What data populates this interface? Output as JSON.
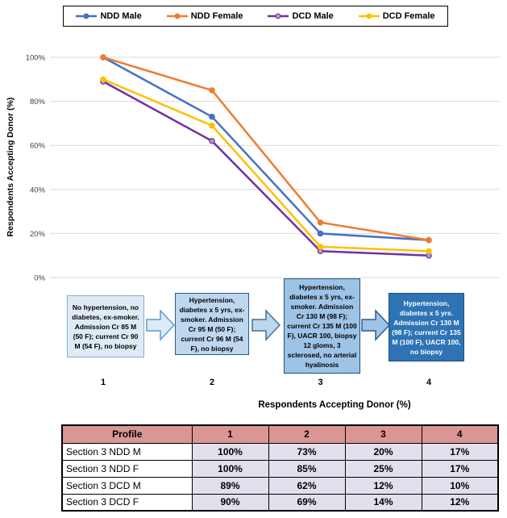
{
  "chart_data": {
    "type": "line",
    "x": [
      1,
      2,
      3,
      4
    ],
    "series": [
      {
        "name": "NDD Male",
        "color": "#4472C4",
        "marker_fill": "#4472C4",
        "values": [
          100,
          73,
          20,
          17
        ]
      },
      {
        "name": "DCD Male",
        "color": "#7030A0",
        "marker_fill": "#A6A0B8",
        "values": [
          89,
          62,
          12,
          10
        ]
      },
      {
        "name": "DCD Female",
        "color": "#FFC000",
        "marker_fill": "#FFC000",
        "values": [
          90,
          69,
          14,
          12
        ]
      },
      {
        "name": "NDD Female",
        "color": "#ED7D31",
        "marker_fill": "#ED7D31",
        "values": [
          100,
          85,
          25,
          17
        ]
      }
    ],
    "legend_order": [
      "NDD Male",
      "NDD Female",
      "DCD Male",
      "DCD Female"
    ],
    "title": "",
    "xlabel": "Respondents Accepting Donor (%)",
    "ylabel": "Respondents Accepting Donor (%)",
    "ylim": [
      0,
      100
    ],
    "yticks": [
      "0%",
      "20%",
      "40%",
      "60%",
      "80%",
      "100%"
    ],
    "xticks": [
      "1",
      "2",
      "3",
      "4"
    ],
    "grid": true,
    "grid_color": "#D9D9D9",
    "legend_position": "top"
  },
  "flow": {
    "steps": [
      {
        "label": "1",
        "text": "No hypertension, no diabetes, ex-smoker. Admission Cr 85 M (50 F); current Cr 90 M (54 F), no biopsy",
        "bg": "#DEEBF7",
        "border": "#8FAACC",
        "text_color": "#000000"
      },
      {
        "label": "2",
        "text": "Hypertension, diabetes x 5 yrs, ex-smoker. Admission Cr 95 M (50 F); current Cr 96 M (54 F), no biopsy",
        "bg": "#BDD7EE",
        "border": "#2E5B8F",
        "text_color": "#000000"
      },
      {
        "label": "3",
        "text": "Hypertension, diabetes x 5 yrs, ex-smoker. Admission Cr 130 M (98 F); current Cr 135 M (100 F), UACR 100, biopsy 12 gloms, 3 sclerosed, no arterial hyalinosis",
        "bg": "#9DC3E6",
        "border": "#1F4E79",
        "text_color": "#000000"
      },
      {
        "label": "4",
        "text": "Hypertension, diabetes x 5 yrs. Admission Cr 130 M (98 F); current Cr 135 M (100 F), UACR 100, no biopsy",
        "bg": "#2E74B5",
        "border": "#1F4E79",
        "text_color": "#FFFFFF"
      }
    ],
    "arrows": [
      {
        "fill": "#DEEBF7",
        "stroke": "#5B9BD5"
      },
      {
        "fill": "#BDD7EE",
        "stroke": "#41719C"
      },
      {
        "fill": "#9DC3E6",
        "stroke": "#2E5B8F"
      }
    ]
  },
  "bottom_title": "Respondents Accepting Donor (%)",
  "table": {
    "headers": [
      "Profile",
      "1",
      "2",
      "3",
      "4"
    ],
    "rows": [
      {
        "profile": "Section 3 NDD M",
        "values": [
          "100%",
          "73%",
          "20%",
          "17%"
        ]
      },
      {
        "profile": "Section 3 NDD F",
        "values": [
          "100%",
          "85%",
          "25%",
          "17%"
        ]
      },
      {
        "profile": "Section 3 DCD M",
        "values": [
          "89%",
          "62%",
          "12%",
          "10%"
        ]
      },
      {
        "profile": "Section 3 DCD F",
        "values": [
          "90%",
          "69%",
          "14%",
          "12%"
        ]
      }
    ],
    "header_bg": "#D99694",
    "value_bg": "#E4DFEC"
  }
}
